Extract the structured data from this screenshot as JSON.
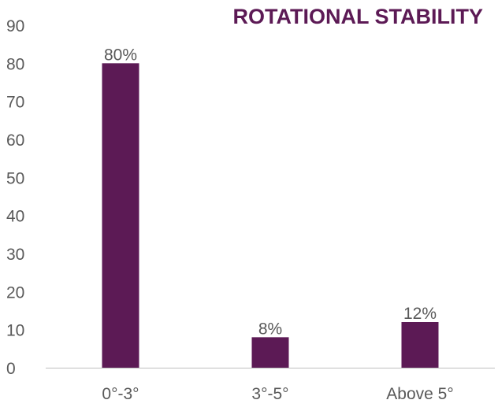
{
  "chart_data": {
    "type": "bar",
    "title": "ROTATIONAL STABILITY",
    "categories": [
      "0°-3°",
      "3°-5°",
      "Above 5°"
    ],
    "series": [
      {
        "values": [
          80,
          8,
          12
        ],
        "data_labels": [
          "80%",
          "8%",
          "12%"
        ]
      }
    ],
    "y_ticks": [
      "0",
      "10",
      "20",
      "30",
      "40",
      "50",
      "60",
      "70",
      "80",
      "90"
    ],
    "ylim": [
      0,
      90
    ],
    "xlabel": "",
    "ylabel": "",
    "grid": false,
    "legend": "none",
    "colors": {
      "bar": "#5c1a55",
      "title": "#5c1a55",
      "axis_text": "#595959",
      "axis_line": "#bfbfbf"
    }
  }
}
